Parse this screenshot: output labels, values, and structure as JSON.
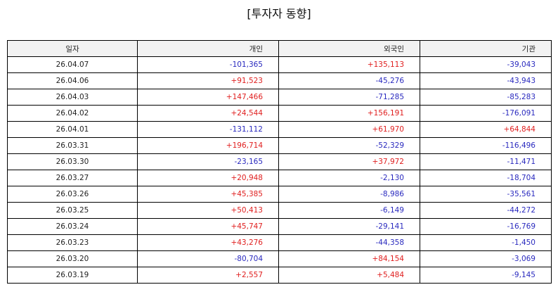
{
  "title": "[투자자 동향]",
  "colors": {
    "positive": "#e02020",
    "negative": "#2a2abf"
  },
  "columns": [
    "일자",
    "개인",
    "외국인",
    "기관"
  ],
  "rows": [
    [
      "26.04.07",
      "-101,365",
      "+135,113",
      "-39,043"
    ],
    [
      "26.04.06",
      "+91,523",
      "-45,276",
      "-43,943"
    ],
    [
      "26.04.03",
      "+147,466",
      "-71,285",
      "-85,283"
    ],
    [
      "26.04.02",
      "+24,544",
      "+156,191",
      "-176,091"
    ],
    [
      "26.04.01",
      "-131,112",
      "+61,970",
      "+64,844"
    ],
    [
      "26.03.31",
      "+196,714",
      "-52,329",
      "-116,496"
    ],
    [
      "26.03.30",
      "-23,165",
      "+37,972",
      "-11,471"
    ],
    [
      "26.03.27",
      "+20,948",
      "-2,130",
      "-18,704"
    ],
    [
      "26.03.26",
      "+45,385",
      "-8,986",
      "-35,561"
    ],
    [
      "26.03.25",
      "+50,413",
      "-6,149",
      "-44,272"
    ],
    [
      "26.03.24",
      "+45,747",
      "-29,141",
      "-16,769"
    ],
    [
      "26.03.23",
      "+43,276",
      "-44,358",
      "-1,450"
    ],
    [
      "26.03.20",
      "-80,704",
      "+84,154",
      "-3,069"
    ],
    [
      "26.03.19",
      "+2,557",
      "+5,484",
      "-9,145"
    ]
  ]
}
